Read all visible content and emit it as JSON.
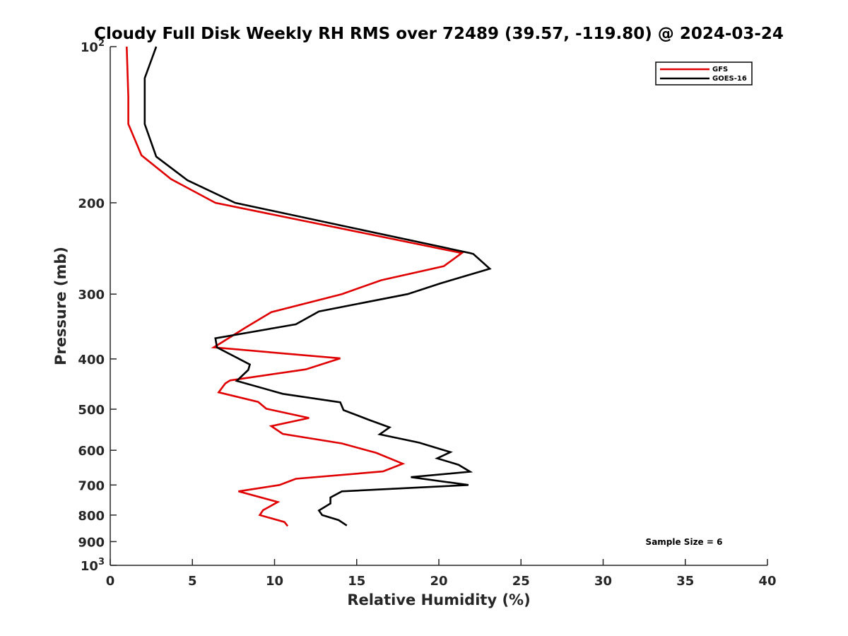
{
  "chart_data": {
    "type": "line",
    "title": "Cloudy Full Disk Weekly RH RMS over 72489 (39.57, -119.80) @ 2024-03-24",
    "xlabel": "Relative Humidity (%)",
    "ylabel": "Pressure (mb)",
    "xlim": [
      0,
      40
    ],
    "ylim": [
      100,
      1000
    ],
    "y_scale": "log",
    "y_reversed": true,
    "x_ticks": [
      0,
      5,
      10,
      15,
      20,
      25,
      30,
      35,
      40
    ],
    "y_ticks": [
      {
        "value": 100,
        "label": "10",
        "exp": "2"
      },
      {
        "value": 200,
        "label": "200",
        "exp": ""
      },
      {
        "value": 300,
        "label": "300",
        "exp": ""
      },
      {
        "value": 400,
        "label": "400",
        "exp": ""
      },
      {
        "value": 500,
        "label": "500",
        "exp": ""
      },
      {
        "value": 600,
        "label": "600",
        "exp": ""
      },
      {
        "value": 700,
        "label": "700",
        "exp": ""
      },
      {
        "value": 800,
        "label": "800",
        "exp": ""
      },
      {
        "value": 900,
        "label": "900",
        "exp": ""
      },
      {
        "value": 1000,
        "label": "10",
        "exp": "3"
      }
    ],
    "grid": false,
    "legend_position": "top-right",
    "annotation": "Sample Size = 6",
    "series": [
      {
        "name": "GFS",
        "color": "#e00000",
        "points": [
          [
            1.0,
            100
          ],
          [
            1.1,
            125
          ],
          [
            1.1,
            141
          ],
          [
            1.9,
            162
          ],
          [
            3.7,
            180
          ],
          [
            6.4,
            200
          ],
          [
            21.4,
            250
          ],
          [
            20.3,
            265
          ],
          [
            16.5,
            282
          ],
          [
            14.1,
            300
          ],
          [
            9.8,
            325
          ],
          [
            8.3,
            347
          ],
          [
            6.3,
            380
          ],
          [
            14.0,
            399
          ],
          [
            11.9,
            419
          ],
          [
            7.3,
            440
          ],
          [
            7.0,
            446
          ],
          [
            6.6,
            464
          ],
          [
            9.0,
            484
          ],
          [
            9.5,
            499
          ],
          [
            12.1,
            520
          ],
          [
            9.8,
            539
          ],
          [
            10.5,
            558
          ],
          [
            14.1,
            582
          ],
          [
            16.2,
            607
          ],
          [
            17.8,
            637
          ],
          [
            16.6,
            659
          ],
          [
            11.3,
            681
          ],
          [
            10.3,
            700
          ],
          [
            7.8,
            720
          ],
          [
            10.2,
            755
          ],
          [
            9.3,
            783
          ],
          [
            9.1,
            800
          ],
          [
            10.6,
            825
          ],
          [
            10.8,
            840
          ]
        ]
      },
      {
        "name": "GOES-16",
        "color": "#000000",
        "points": [
          [
            2.8,
            100
          ],
          [
            2.1,
            115
          ],
          [
            2.1,
            125
          ],
          [
            2.1,
            141
          ],
          [
            2.8,
            163
          ],
          [
            4.7,
            181
          ],
          [
            7.6,
            200
          ],
          [
            21.9,
            250
          ],
          [
            22.1,
            251
          ],
          [
            23.1,
            268
          ],
          [
            20.1,
            286
          ],
          [
            18.1,
            300
          ],
          [
            12.7,
            324
          ],
          [
            11.3,
            343
          ],
          [
            6.4,
            365
          ],
          [
            6.5,
            380
          ],
          [
            8.5,
            410
          ],
          [
            8.4,
            420
          ],
          [
            7.7,
            441
          ],
          [
            10.5,
            467
          ],
          [
            14.0,
            485
          ],
          [
            14.2,
            502
          ],
          [
            15.8,
            525
          ],
          [
            17.0,
            542
          ],
          [
            16.4,
            559
          ],
          [
            18.8,
            580
          ],
          [
            20.7,
            605
          ],
          [
            19.9,
            622
          ],
          [
            21.2,
            640
          ],
          [
            21.9,
            660
          ],
          [
            18.3,
            676
          ],
          [
            21.8,
            700
          ],
          [
            14.1,
            720
          ],
          [
            13.4,
            740
          ],
          [
            13.4,
            760
          ],
          [
            12.7,
            784
          ],
          [
            12.9,
            800
          ],
          [
            13.9,
            818
          ],
          [
            14.4,
            838
          ]
        ]
      }
    ]
  }
}
